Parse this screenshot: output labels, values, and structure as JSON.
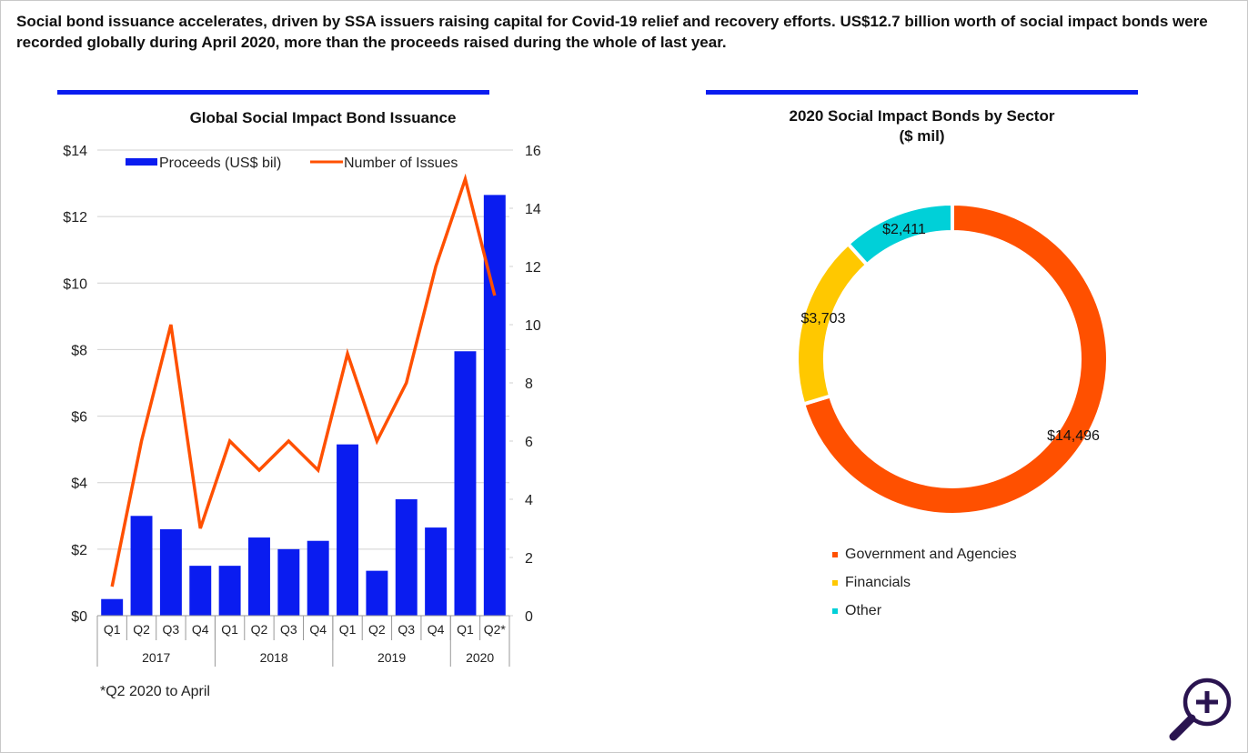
{
  "headline": "Social bond issuance accelerates, driven by SSA issuers raising capital for Covid-19 relief and recovery efforts. US$12.7 billion worth of social impact bonds were recorded globally during April 2020, more than the proceeds raised during the whole of last year.",
  "colors": {
    "accent_rule": "#0a1cf0",
    "bar": "#0a1cf0",
    "line": "#ff5000",
    "government": "#ff5000",
    "financials": "#ffc800",
    "other": "#00d0d8",
    "zoom_icon": "#2a1450"
  },
  "footnote": "*Q2 2020 to April",
  "zoom_button": {
    "icon": "zoom-in-icon"
  },
  "chart_data": [
    {
      "type": "bar+line",
      "title": "Global Social Impact Bond Issuance",
      "categories": [
        "Q1",
        "Q2",
        "Q3",
        "Q4",
        "Q1",
        "Q2",
        "Q3",
        "Q4",
        "Q1",
        "Q2",
        "Q3",
        "Q4",
        "Q1",
        "Q2*"
      ],
      "groups": [
        {
          "label": "2017",
          "count": 4
        },
        {
          "label": "2018",
          "count": 4
        },
        {
          "label": "2019",
          "count": 4
        },
        {
          "label": "2020",
          "count": 2
        }
      ],
      "series": [
        {
          "name": "Proceeds (US$ bil)",
          "type": "bar",
          "axis": "left",
          "values": [
            0.5,
            3.0,
            2.6,
            1.5,
            1.5,
            2.35,
            2.0,
            2.25,
            5.15,
            1.35,
            3.5,
            2.65,
            7.95,
            12.65
          ]
        },
        {
          "name": "Number of Issues",
          "type": "line",
          "axis": "right",
          "values": [
            1,
            6,
            10,
            3,
            6,
            5,
            6,
            5,
            9,
            6,
            8,
            12,
            15,
            11
          ]
        }
      ],
      "y_left": {
        "ylim": [
          0,
          14
        ],
        "ticks": [
          "$0",
          "$2",
          "$4",
          "$6",
          "$8",
          "$10",
          "$12",
          "$14"
        ]
      },
      "y_right": {
        "ylim": [
          0,
          16
        ],
        "ticks": [
          "0",
          "2",
          "4",
          "6",
          "8",
          "10",
          "12",
          "14",
          "16"
        ]
      },
      "grid": true,
      "legend": "top"
    },
    {
      "type": "pie",
      "donut": true,
      "title": "2020 Social Impact Bonds by Sector",
      "subtitle": "($ mil)",
      "slices": [
        {
          "label": "Government and Agencies",
          "value": 14496,
          "display": "$14,496"
        },
        {
          "label": "Financials",
          "value": 3703,
          "display": "$3,703"
        },
        {
          "label": "Other",
          "value": 2411,
          "display": "$2,411"
        }
      ],
      "legend": "bottom"
    }
  ]
}
